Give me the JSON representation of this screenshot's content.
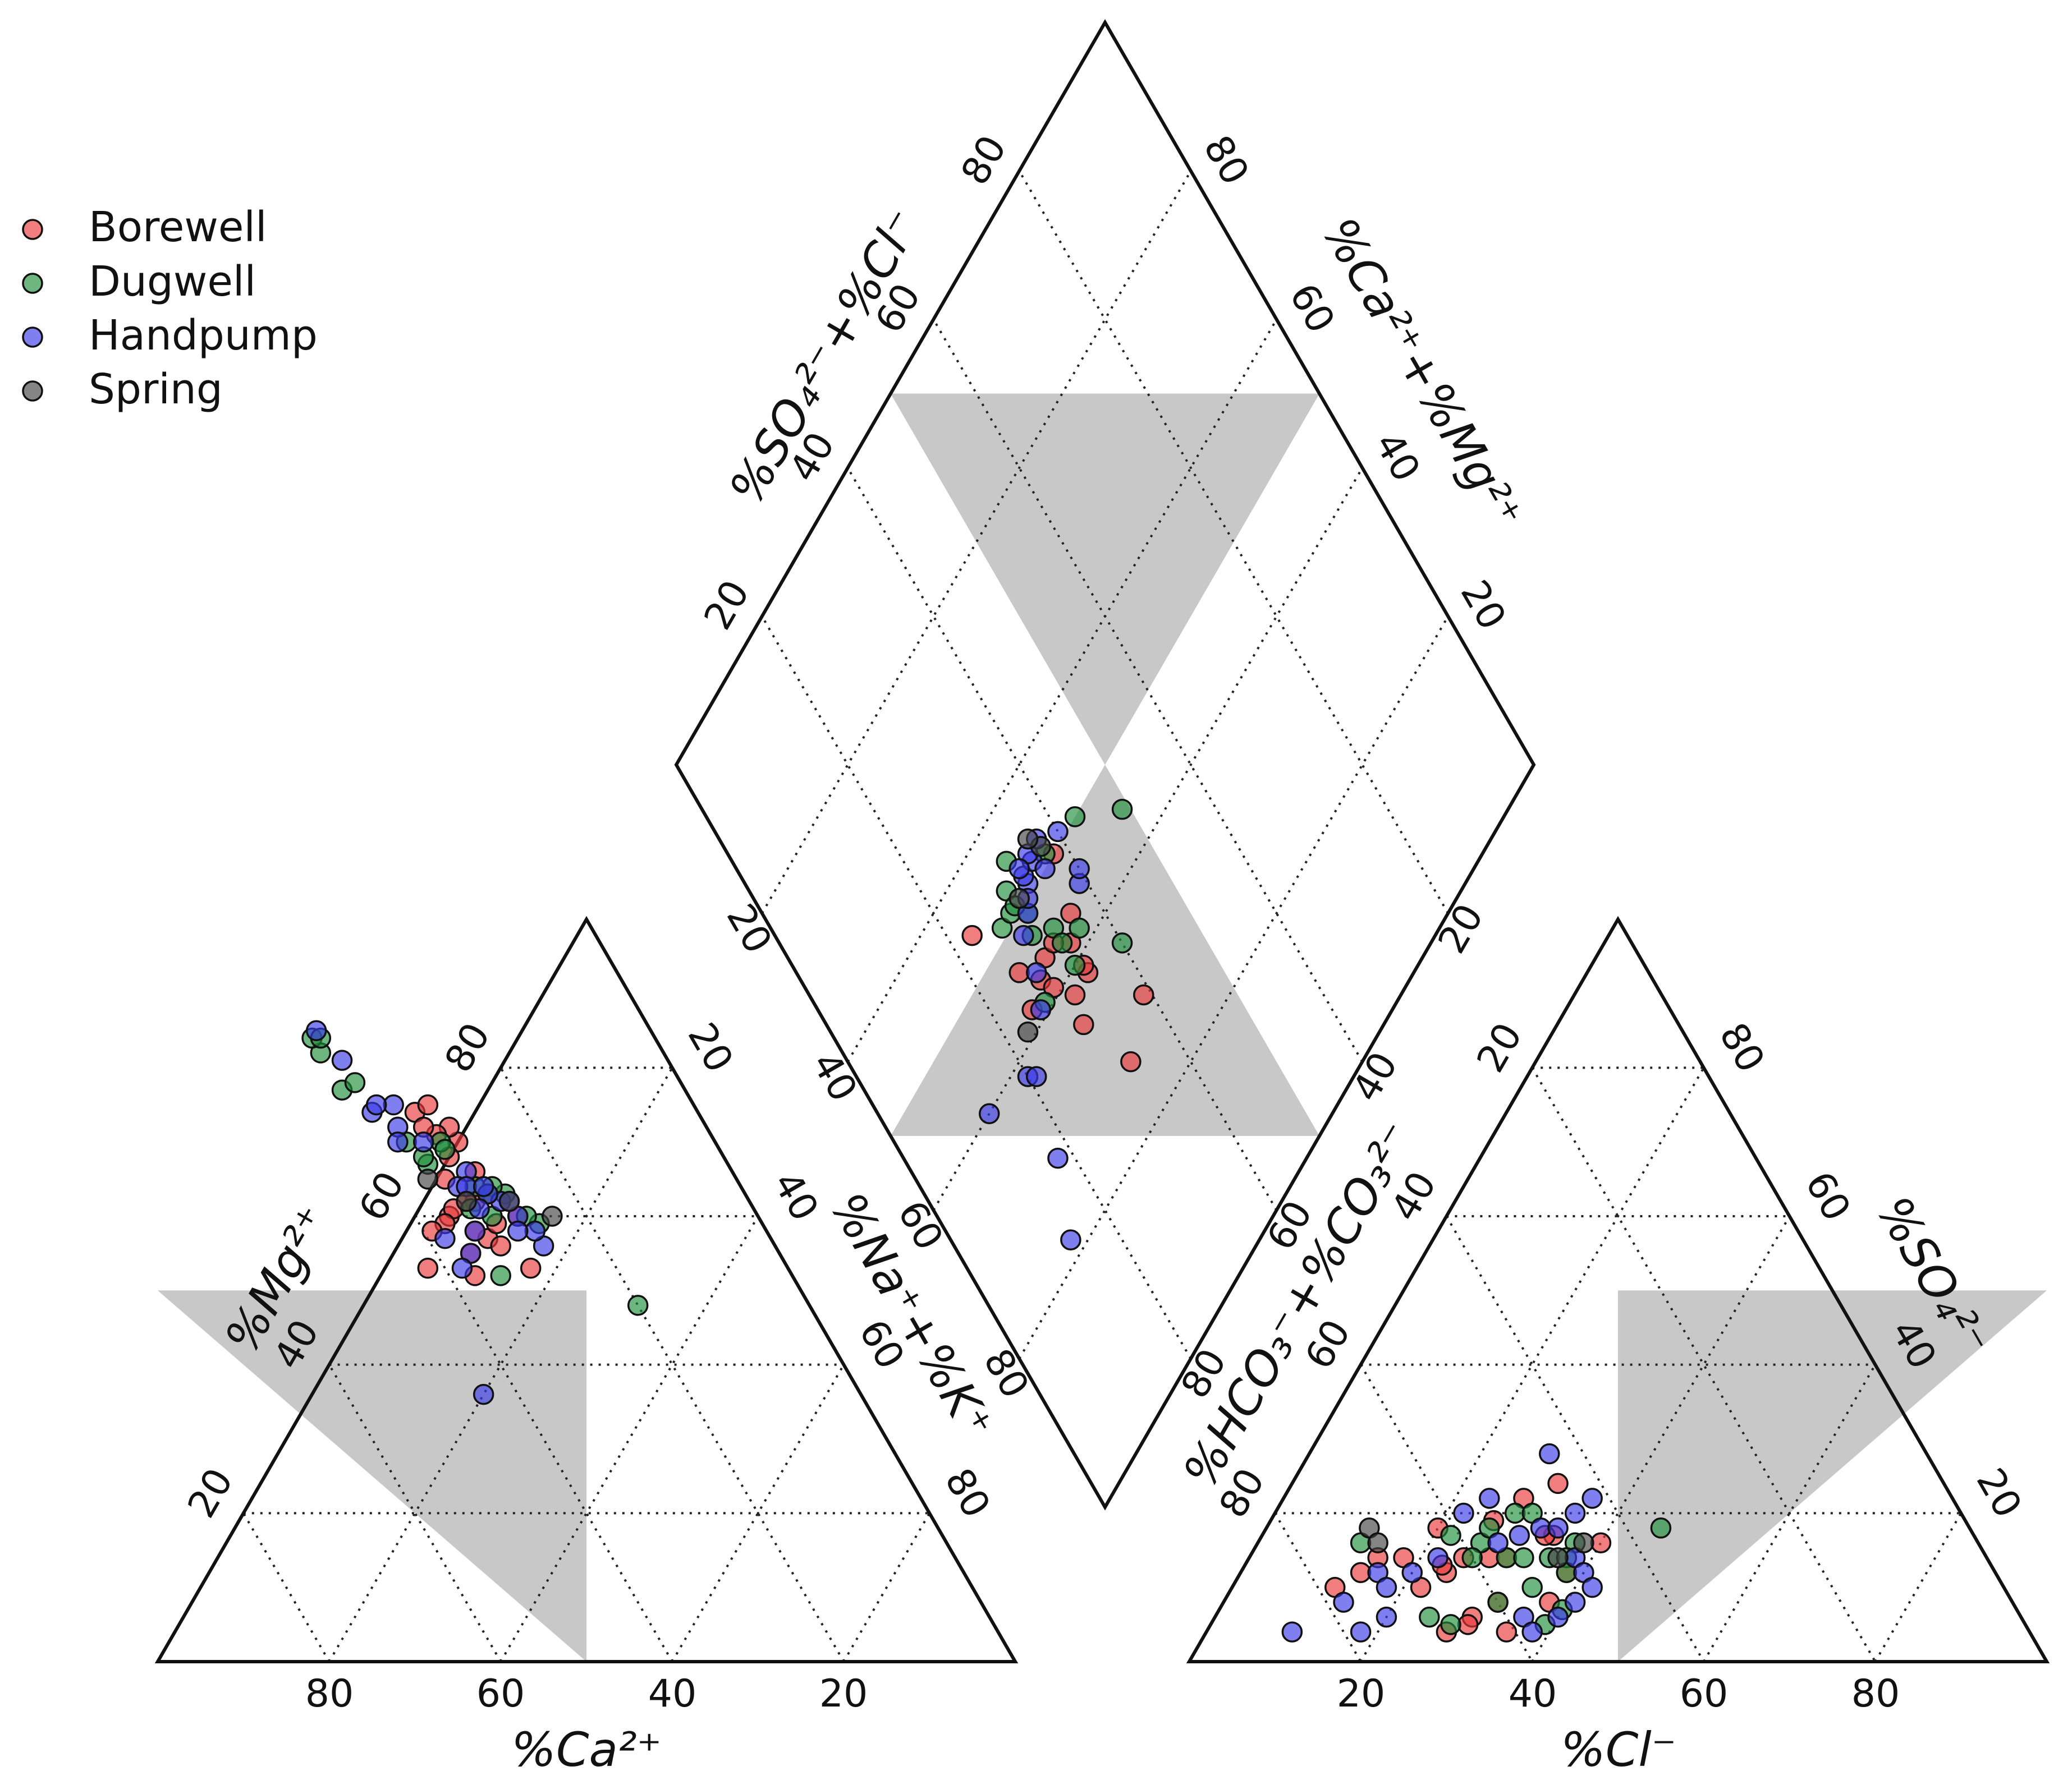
{
  "chart_data": {
    "type": "scatter",
    "subtype": "piper-diagram",
    "legend": {
      "placement": "top-left",
      "entries": [
        {
          "name": "Borewell",
          "color": "#e8393a"
        },
        {
          "name": "Dugwell",
          "color": "#1f8f3a"
        },
        {
          "name": "Handpump",
          "color": "#3a3ae6"
        },
        {
          "name": "Spring",
          "color": "#444444"
        }
      ]
    },
    "cation_triangle": {
      "bottom_axis": {
        "label": "%Ca²⁺",
        "ticks": [
          "80",
          "60",
          "40",
          "20"
        ]
      },
      "left_axis": {
        "label": "%Mg²⁺",
        "ticks": [
          "20",
          "40",
          "60",
          "80"
        ]
      },
      "right_axis": {
        "label": "%Na⁺+%K⁺",
        "ticks": [
          "20",
          "40",
          "60",
          "80"
        ]
      }
    },
    "anion_triangle": {
      "bottom_axis": {
        "label": "%Cl⁻",
        "ticks": [
          "20",
          "40",
          "60",
          "80"
        ]
      },
      "left_axis": {
        "label": "%HCO₃⁻+%CO₃²⁻",
        "ticks": [
          "80",
          "60",
          "40",
          "20"
        ]
      },
      "right_axis": {
        "label": "%SO₄²⁻",
        "ticks": [
          "80",
          "60",
          "40",
          "20"
        ]
      }
    },
    "diamond": {
      "upper_left_axis": {
        "label": "%SO₄²⁻+%Cl⁻",
        "ticks": [
          "20",
          "40",
          "60",
          "80"
        ]
      },
      "upper_right_axis": {
        "label": "%Ca²⁺+%Mg²⁺",
        "ticks": [
          "80",
          "60",
          "40",
          "20"
        ]
      },
      "lower_left_ticks": [
        "20",
        "40",
        "60",
        "80"
      ],
      "lower_right_ticks": [
        "20",
        "40",
        "60",
        "80"
      ]
    },
    "series": [
      {
        "name": "Borewell",
        "cation": [
          [
            33,
            57
          ],
          [
            28,
            60
          ],
          [
            30,
            63
          ],
          [
            34,
            65
          ],
          [
            30,
            66
          ],
          [
            32,
            62
          ],
          [
            36,
            60
          ],
          [
            34,
            58
          ],
          [
            36,
            55
          ],
          [
            30,
            53
          ],
          [
            31,
            59
          ],
          [
            33,
            62
          ],
          [
            35,
            61
          ],
          [
            37,
            59
          ],
          [
            39,
            58
          ],
          [
            37,
            52
          ],
          [
            42,
            53
          ],
          [
            30,
            70
          ],
          [
            30,
            72
          ],
          [
            32,
            71
          ],
          [
            33,
            74
          ],
          [
            31,
            75
          ],
          [
            33,
            72
          ],
          [
            32,
            56
          ],
          [
            32,
            68
          ]
        ],
        "anion": [
          [
            12,
            10
          ],
          [
            14,
            12
          ],
          [
            15,
            14
          ],
          [
            18,
            14
          ],
          [
            22,
            10
          ],
          [
            24,
            12
          ],
          [
            28,
            14
          ],
          [
            30,
            14
          ],
          [
            26,
            19
          ],
          [
            28,
            22
          ],
          [
            34,
            17
          ],
          [
            31,
            24
          ],
          [
            28,
            4
          ],
          [
            30,
            6
          ],
          [
            35,
            4
          ],
          [
            32,
            8
          ],
          [
            38,
            8
          ],
          [
            38,
            12
          ],
          [
            40,
            16
          ],
          [
            20,
            18
          ],
          [
            23,
            13
          ],
          [
            25,
            14
          ],
          [
            33,
            17
          ],
          [
            30,
            5
          ]
        ],
        "diamond": [
          [
            23,
            54
          ],
          [
            25,
            42
          ],
          [
            26,
            46
          ],
          [
            28,
            43
          ],
          [
            29,
            41
          ],
          [
            31,
            38
          ],
          [
            30,
            35
          ],
          [
            34,
            38
          ],
          [
            34,
            42
          ],
          [
            36,
            44
          ],
          [
            38,
            50
          ],
          [
            34,
            39
          ],
          [
            30,
            44
          ],
          [
            33,
            27
          ],
          [
            39,
            30
          ],
          [
            32,
            44
          ]
        ]
      },
      {
        "name": "Dugwell",
        "cation": [
          [
            26,
            59
          ],
          [
            27,
            60
          ],
          [
            28,
            63
          ],
          [
            29,
            64
          ],
          [
            31,
            64
          ],
          [
            31,
            60
          ],
          [
            35,
            67
          ],
          [
            36,
            70
          ],
          [
            32,
            70
          ],
          [
            32,
            69
          ],
          [
            34,
            52
          ],
          [
            40,
            77
          ],
          [
            38,
            78
          ],
          [
            40,
            82
          ],
          [
            40,
            84
          ],
          [
            30,
            63
          ],
          [
            35,
            68
          ],
          [
            33,
            61
          ],
          [
            39,
            84
          ],
          [
            20,
            48
          ]
        ],
        "anion": [
          [
            12,
            16
          ],
          [
            22,
            17
          ],
          [
            26,
            16
          ],
          [
            26,
            14
          ],
          [
            30,
            14
          ],
          [
            32,
            14
          ],
          [
            35,
            14
          ],
          [
            37,
            16
          ],
          [
            37,
            14
          ],
          [
            38,
            12
          ],
          [
            25,
            6
          ],
          [
            28,
            5
          ],
          [
            32,
            8
          ],
          [
            39,
            5
          ],
          [
            40,
            7
          ],
          [
            46,
            18
          ],
          [
            26,
            18
          ],
          [
            28,
            20
          ],
          [
            30,
            20
          ],
          [
            35,
            10
          ]
        ],
        "diamond": [
          [
            27,
            51
          ],
          [
            29,
            51
          ],
          [
            30,
            53
          ],
          [
            32,
            55
          ],
          [
            30,
            47
          ],
          [
            31,
            49
          ],
          [
            33,
            45
          ],
          [
            33,
            43
          ],
          [
            33,
            40
          ],
          [
            36,
            42
          ],
          [
            37,
            51
          ],
          [
            40,
            36
          ],
          [
            43,
            50
          ],
          [
            49,
            45
          ],
          [
            27,
            41
          ],
          [
            30,
            51
          ]
        ]
      },
      {
        "name": "Handpump",
        "cation": [
          [
            27,
            56
          ],
          [
            27,
            58
          ],
          [
            28,
            60
          ],
          [
            29,
            62
          ],
          [
            30,
            63
          ],
          [
            31,
            66
          ],
          [
            32,
            61
          ],
          [
            33,
            64
          ],
          [
            34,
            58
          ],
          [
            36,
            55
          ],
          [
            38,
            57
          ],
          [
            34,
            70
          ],
          [
            35,
            75
          ],
          [
            36,
            72
          ],
          [
            38,
            74
          ],
          [
            37,
            75
          ],
          [
            38,
            81
          ],
          [
            39,
            85
          ],
          [
            38,
            53
          ],
          [
            37,
            70
          ],
          [
            28,
            62
          ],
          [
            29,
            58
          ],
          [
            44,
            36
          ],
          [
            32,
            64
          ],
          [
            30,
            64
          ]
        ],
        "anion": [
          [
            14,
            8
          ],
          [
            10,
            4
          ],
          [
            16,
            12
          ],
          [
            18,
            10
          ],
          [
            20,
            12
          ],
          [
            22,
            14
          ],
          [
            28,
            16
          ],
          [
            30,
            17
          ],
          [
            32,
            18
          ],
          [
            34,
            18
          ],
          [
            35,
            20
          ],
          [
            36,
            22
          ],
          [
            24,
            22
          ],
          [
            28,
            28
          ],
          [
            38,
            14
          ],
          [
            40,
            12
          ],
          [
            36,
            6
          ],
          [
            38,
            4
          ],
          [
            40,
            6
          ],
          [
            41,
            8
          ],
          [
            42,
            10
          ],
          [
            22,
            20
          ],
          [
            18,
            4
          ],
          [
            20,
            6
          ]
        ],
        "diamond": [
          [
            13,
            40
          ],
          [
            20,
            38
          ],
          [
            18,
            29
          ],
          [
            21,
            37
          ],
          [
            26,
            41
          ],
          [
            28,
            44
          ],
          [
            29,
            48
          ],
          [
            31,
            49
          ],
          [
            33,
            51
          ],
          [
            33,
            52
          ],
          [
            35,
            52
          ],
          [
            37,
            53
          ],
          [
            35,
            53
          ],
          [
            36,
            50
          ],
          [
            40,
            51
          ],
          [
            39,
            45
          ],
          [
            40,
            46
          ],
          [
            32,
            50
          ],
          [
            33,
            53
          ],
          [
            14,
            22
          ]
        ]
      },
      {
        "name": "Spring",
        "cation": [
          [
            24,
            60
          ],
          [
            28,
            62
          ],
          [
            33,
            62
          ],
          [
            36,
            65
          ]
        ],
        "anion": [
          [
            12,
            18
          ],
          [
            14,
            16
          ],
          [
            38,
            16
          ],
          [
            36,
            14
          ]
        ],
        "diamond": [
          [
            23,
            41
          ],
          [
            31,
            51
          ],
          [
            37,
            52
          ],
          [
            36,
            54
          ]
        ]
      }
    ]
  }
}
